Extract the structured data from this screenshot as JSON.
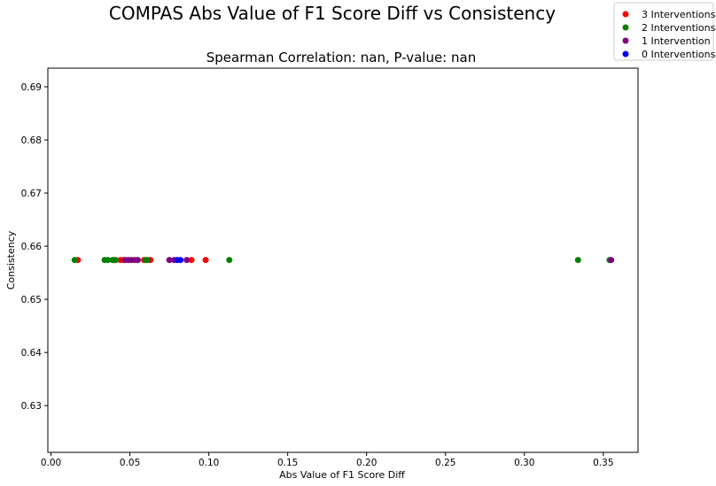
{
  "chart_data": {
    "type": "scatter",
    "title": "COMPAS Abs Value of F1 Score Diff vs Consistency",
    "subtitle": "Spearman Correlation: nan, P-value: nan",
    "xlabel": "Abs Value of F1 Score Diff",
    "ylabel": "Consistency",
    "xlim": [
      -0.002,
      0.372
    ],
    "ylim": [
      0.6212,
      0.6935
    ],
    "xticks": [
      0.0,
      0.05,
      0.1,
      0.15,
      0.2,
      0.25,
      0.3,
      0.35
    ],
    "xtick_labels": [
      "0.00",
      "0.05",
      "0.10",
      "0.15",
      "0.20",
      "0.25",
      "0.30",
      "0.35"
    ],
    "yticks": [
      0.63,
      0.64,
      0.65,
      0.66,
      0.67,
      0.68,
      0.69
    ],
    "ytick_labels": [
      "0.63",
      "0.64",
      "0.65",
      "0.66",
      "0.67",
      "0.68",
      "0.69"
    ],
    "grid": false,
    "legend_position": "top-right",
    "series": [
      {
        "name": "3 Interventions",
        "color": "#ff0000",
        "points": [
          {
            "x": 0.017,
            "y": 0.6574
          },
          {
            "x": 0.04,
            "y": 0.6574
          },
          {
            "x": 0.044,
            "y": 0.6574
          },
          {
            "x": 0.046,
            "y": 0.6574
          },
          {
            "x": 0.059,
            "y": 0.6574
          },
          {
            "x": 0.063,
            "y": 0.6574
          },
          {
            "x": 0.089,
            "y": 0.6574
          },
          {
            "x": 0.098,
            "y": 0.6574
          }
        ]
      },
      {
        "name": "2 Interventions",
        "color": "#008000",
        "points": [
          {
            "x": 0.015,
            "y": 0.6574
          },
          {
            "x": 0.034,
            "y": 0.6574
          },
          {
            "x": 0.036,
            "y": 0.6574
          },
          {
            "x": 0.039,
            "y": 0.6574
          },
          {
            "x": 0.041,
            "y": 0.6574
          },
          {
            "x": 0.06,
            "y": 0.6574
          },
          {
            "x": 0.061,
            "y": 0.6574
          },
          {
            "x": 0.113,
            "y": 0.6574
          },
          {
            "x": 0.334,
            "y": 0.6574
          },
          {
            "x": 0.354,
            "y": 0.6574
          }
        ]
      },
      {
        "name": "1 Intervention",
        "color": "#800080",
        "points": [
          {
            "x": 0.047,
            "y": 0.6574
          },
          {
            "x": 0.049,
            "y": 0.6574
          },
          {
            "x": 0.051,
            "y": 0.6574
          },
          {
            "x": 0.053,
            "y": 0.6574
          },
          {
            "x": 0.055,
            "y": 0.6574
          },
          {
            "x": 0.075,
            "y": 0.6574
          },
          {
            "x": 0.078,
            "y": 0.6574
          },
          {
            "x": 0.086,
            "y": 0.6574
          },
          {
            "x": 0.355,
            "y": 0.6574
          }
        ]
      },
      {
        "name": "0 Interventions",
        "color": "#0000ff",
        "points": [
          {
            "x": 0.08,
            "y": 0.6574
          },
          {
            "x": 0.082,
            "y": 0.6574
          }
        ]
      }
    ]
  }
}
